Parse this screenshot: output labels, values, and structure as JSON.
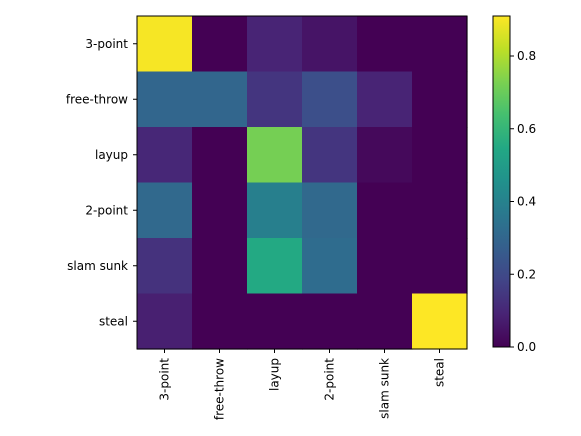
{
  "chart_data": {
    "type": "heatmap",
    "title": "",
    "xlabel": "",
    "ylabel": "",
    "x_categories": [
      "3-point",
      "free-throw",
      "layup",
      "2-point",
      "slam sunk",
      "steal"
    ],
    "y_categories": [
      "3-point",
      "free-throw",
      "layup",
      "2-point",
      "slam sunk",
      "steal"
    ],
    "values": [
      [
        0.9,
        0.0,
        0.09,
        0.05,
        0.0,
        0.0
      ],
      [
        0.3,
        0.3,
        0.14,
        0.22,
        0.09,
        0.0
      ],
      [
        0.1,
        0.0,
        0.72,
        0.14,
        0.02,
        0.0
      ],
      [
        0.31,
        0.0,
        0.39,
        0.31,
        0.0,
        0.0
      ],
      [
        0.13,
        0.0,
        0.55,
        0.32,
        0.0,
        0.0
      ],
      [
        0.08,
        0.0,
        0.0,
        0.0,
        0.0,
        0.91
      ]
    ],
    "colormap": "viridis",
    "colorbar": {
      "range": [
        0.0,
        0.91
      ],
      "ticks": [
        0.0,
        0.2,
        0.4,
        0.6,
        0.8
      ],
      "tick_labels": [
        "0.0",
        "0.2",
        "0.4",
        "0.6",
        "0.8"
      ]
    },
    "grid": false
  }
}
